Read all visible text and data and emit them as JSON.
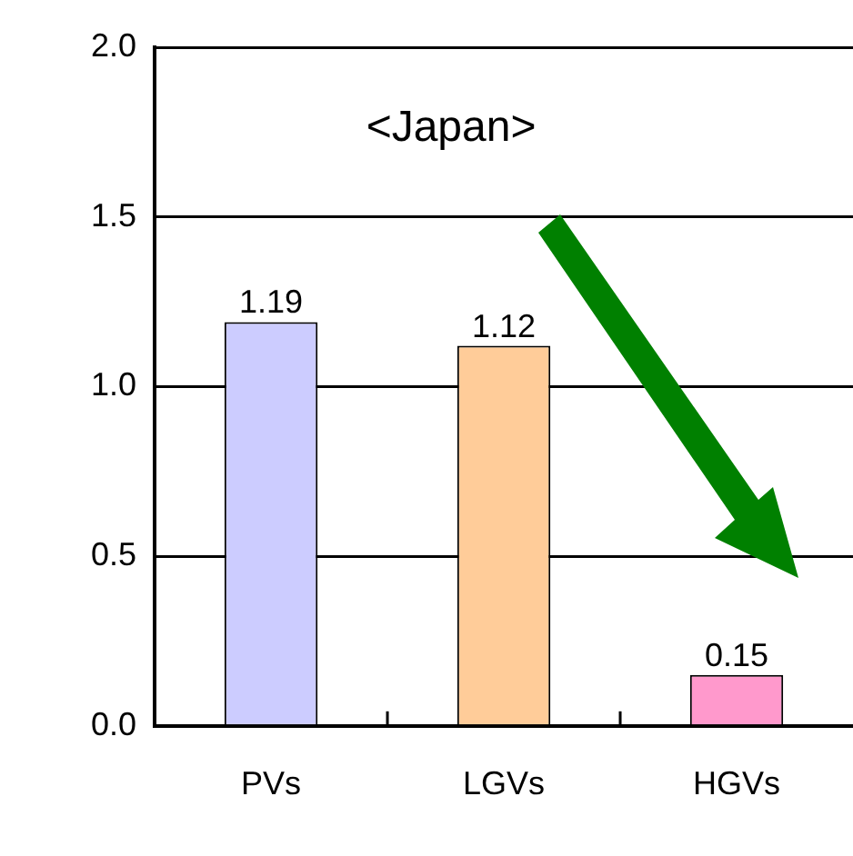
{
  "chart_data": {
    "type": "bar",
    "title": "<Japan>",
    "categories": [
      "PVs",
      "LGVs",
      "HGVs"
    ],
    "values": [
      1.19,
      1.12,
      0.15
    ],
    "colors": [
      "#ccccff",
      "#ffcc99",
      "#ff99cc"
    ],
    "ylim": [
      0,
      2
    ],
    "yticks": [
      {
        "value": 0,
        "label": "0.0"
      },
      {
        "value": 0.5,
        "label": "0.5"
      },
      {
        "value": 1,
        "label": "1.0"
      },
      {
        "value": 1.5,
        "label": "1.5"
      },
      {
        "value": 2,
        "label": "2.0"
      }
    ],
    "grid": "y",
    "data_labels": true
  }
}
